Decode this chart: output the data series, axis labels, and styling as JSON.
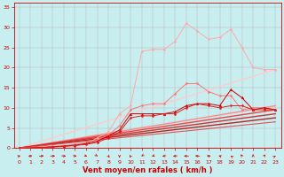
{
  "xlabel": "Vent moyen/en rafales ( km/h )",
  "xlim": [
    -0.5,
    23.5
  ],
  "ylim": [
    0,
    36
  ],
  "bg_color": "#c8eef0",
  "xlabel_color": "#cc0000",
  "xlabel_fontsize": 6,
  "ytick_vals": [
    0,
    5,
    10,
    15,
    20,
    25,
    30,
    35
  ],
  "xtick_vals": [
    0,
    1,
    2,
    3,
    4,
    5,
    6,
    7,
    8,
    9,
    10,
    11,
    12,
    13,
    14,
    15,
    16,
    17,
    18,
    19,
    20,
    21,
    22,
    23
  ],
  "lines": [
    {
      "x": [
        0,
        1,
        2,
        3,
        4,
        5,
        6,
        7,
        8,
        9,
        10,
        11,
        12,
        13,
        14,
        15,
        16,
        17,
        18,
        19,
        20,
        21,
        22,
        23
      ],
      "y": [
        0,
        0.1,
        0.2,
        0.3,
        0.5,
        0.7,
        1.0,
        2.5,
        4.0,
        8.5,
        10.5,
        24.0,
        24.5,
        24.5,
        26.5,
        31.0,
        29.0,
        27.0,
        27.5,
        29.5,
        25.0,
        20.0,
        19.5,
        19.5
      ],
      "color": "#ffaaaa",
      "marker": "D",
      "markersize": 1.5,
      "linewidth": 0.7,
      "linestyle": "-",
      "zorder": 3
    },
    {
      "x": [
        0,
        1,
        2,
        3,
        4,
        5,
        6,
        7,
        8,
        9,
        10,
        11,
        12,
        13,
        14,
        15,
        16,
        17,
        18,
        19,
        20,
        21,
        22,
        23
      ],
      "y": [
        0,
        0.1,
        0.2,
        0.4,
        0.6,
        0.9,
        1.3,
        2.0,
        3.2,
        5.5,
        9.5,
        10.5,
        11.0,
        11.0,
        13.5,
        16.0,
        16.0,
        14.0,
        13.0,
        13.0,
        9.5,
        10.0,
        10.0,
        9.5
      ],
      "color": "#ff7777",
      "marker": "D",
      "markersize": 1.5,
      "linewidth": 0.7,
      "linestyle": "-",
      "zorder": 3
    },
    {
      "x": [
        0,
        1,
        2,
        3,
        4,
        5,
        6,
        7,
        8,
        9,
        10,
        11,
        12,
        13,
        14,
        15,
        16,
        17,
        18,
        19,
        20,
        21,
        22,
        23
      ],
      "y": [
        0,
        0.05,
        0.15,
        0.3,
        0.5,
        0.7,
        1.1,
        1.7,
        3.0,
        4.5,
        8.5,
        8.5,
        8.5,
        8.5,
        9.0,
        10.5,
        11.0,
        11.0,
        10.5,
        14.5,
        12.5,
        9.5,
        10.0,
        9.5
      ],
      "color": "#cc0000",
      "marker": "^",
      "markersize": 2.0,
      "linewidth": 0.7,
      "linestyle": "-",
      "zorder": 4
    },
    {
      "x": [
        0,
        1,
        2,
        3,
        4,
        5,
        6,
        7,
        8,
        9,
        10,
        11,
        12,
        13,
        14,
        15,
        16,
        17,
        18,
        19,
        20,
        21,
        22,
        23
      ],
      "y": [
        0,
        0.05,
        0.1,
        0.25,
        0.4,
        0.6,
        0.9,
        1.4,
        2.5,
        4.0,
        7.5,
        8.0,
        8.0,
        8.5,
        8.5,
        10.0,
        11.0,
        10.5,
        10.0,
        10.5,
        10.5,
        9.5,
        9.5,
        9.5
      ],
      "color": "#dd2222",
      "marker": "D",
      "markersize": 1.5,
      "linewidth": 0.7,
      "linestyle": "-",
      "zorder": 4
    },
    {
      "x": [
        0,
        23
      ],
      "y": [
        0,
        19.5
      ],
      "color": "#ffcccc",
      "marker": null,
      "markersize": 0,
      "linewidth": 1.0,
      "linestyle": "-",
      "zorder": 2
    },
    {
      "x": [
        0,
        23
      ],
      "y": [
        0,
        10.5
      ],
      "color": "#ff8888",
      "marker": null,
      "markersize": 0,
      "linewidth": 1.0,
      "linestyle": "-",
      "zorder": 2
    },
    {
      "x": [
        0,
        23
      ],
      "y": [
        0,
        9.5
      ],
      "color": "#ee4444",
      "marker": null,
      "markersize": 0,
      "linewidth": 1.0,
      "linestyle": "-",
      "zorder": 2
    },
    {
      "x": [
        0,
        23
      ],
      "y": [
        0,
        8.5
      ],
      "color": "#cc3333",
      "marker": null,
      "markersize": 0,
      "linewidth": 1.0,
      "linestyle": "-",
      "zorder": 2
    },
    {
      "x": [
        0,
        23
      ],
      "y": [
        0,
        7.5
      ],
      "color": "#bb2222",
      "marker": null,
      "markersize": 0,
      "linewidth": 1.0,
      "linestyle": "-",
      "zorder": 2
    },
    {
      "x": [
        0,
        23
      ],
      "y": [
        0,
        6.5
      ],
      "color": "#dd5555",
      "marker": null,
      "markersize": 0,
      "linewidth": 0.8,
      "linestyle": "-",
      "zorder": 2
    }
  ],
  "wind_arrow_angles": [
    45,
    60,
    75,
    90,
    105,
    120,
    135,
    150,
    165,
    180,
    195,
    210,
    225,
    240,
    255,
    270,
    285,
    300,
    315,
    330,
    345,
    360,
    15,
    30
  ]
}
